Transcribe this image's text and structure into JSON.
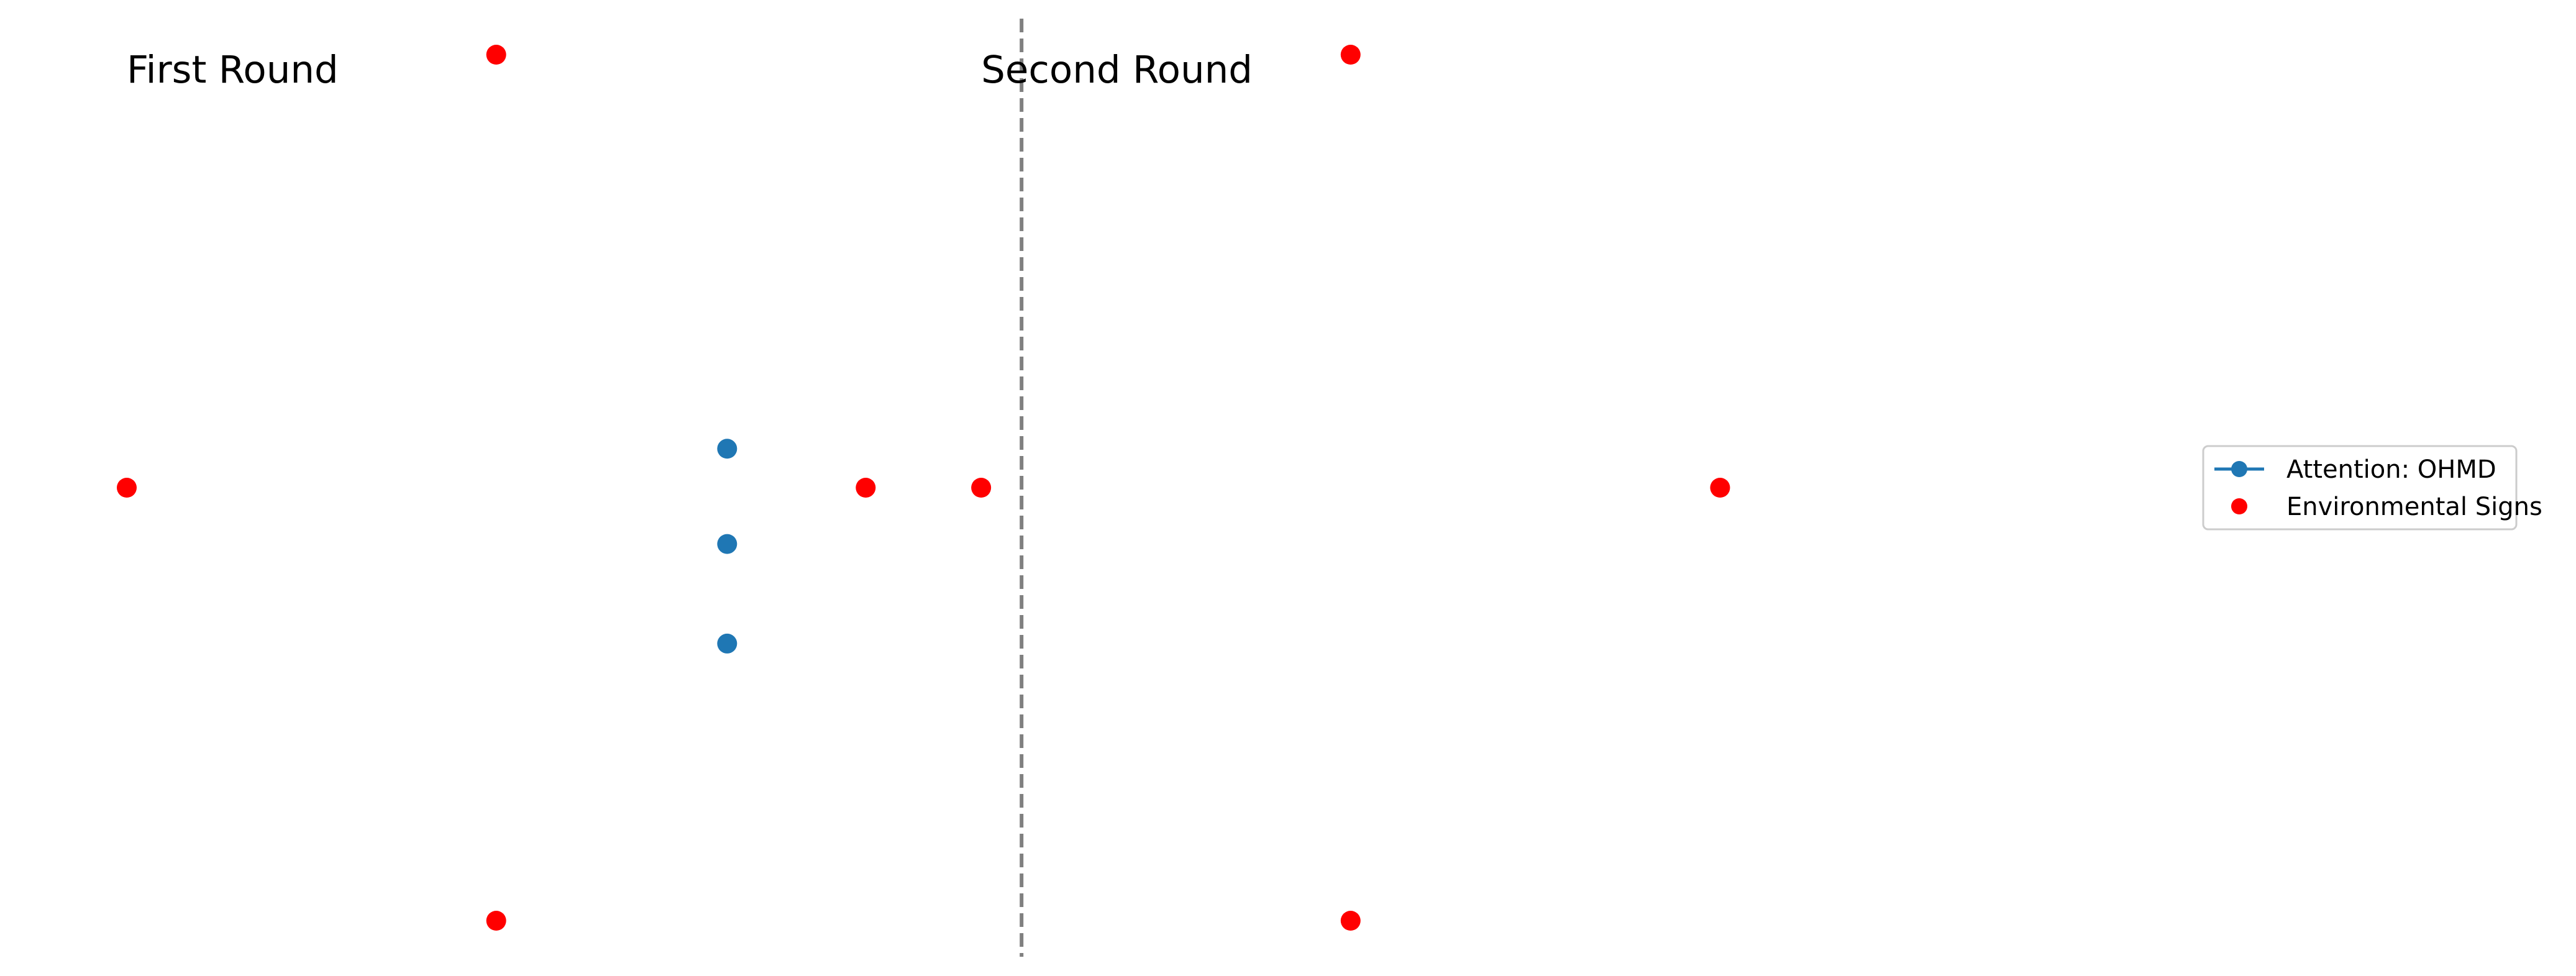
{
  "chart_data": {
    "type": "scatter",
    "xlim": [
      0,
      3.5
    ],
    "ylim": [
      -1,
      1
    ],
    "grid": false,
    "axes_visible": false,
    "legend_placement": "center-right",
    "divider": {
      "x": 1.55,
      "style": "dashed",
      "color": "#808080"
    },
    "panels": [
      {
        "title": "First Round",
        "title_anchor_x": 0.0
      },
      {
        "title": "Second Round",
        "title_anchor_x": 1.48
      }
    ],
    "series": [
      {
        "name": "Attention: OHMD",
        "color": "#1f77b4",
        "marker": "circle",
        "legend_line": true,
        "points": [
          {
            "x": 1.04,
            "y": 0.09
          },
          {
            "x": 1.04,
            "y": -0.13
          },
          {
            "x": 1.04,
            "y": -0.36
          }
        ]
      },
      {
        "name": "Environmental Signs",
        "color": "#ff0000",
        "marker": "circle",
        "legend_line": false,
        "points": [
          {
            "x": 0.64,
            "y": 1.0
          },
          {
            "x": 0.0,
            "y": 0.0
          },
          {
            "x": 1.28,
            "y": 0.0
          },
          {
            "x": 0.64,
            "y": -1.0
          },
          {
            "x": 2.12,
            "y": 1.0
          },
          {
            "x": 1.48,
            "y": 0.0
          },
          {
            "x": 2.76,
            "y": 0.0
          },
          {
            "x": 2.12,
            "y": -1.0
          }
        ]
      }
    ]
  }
}
